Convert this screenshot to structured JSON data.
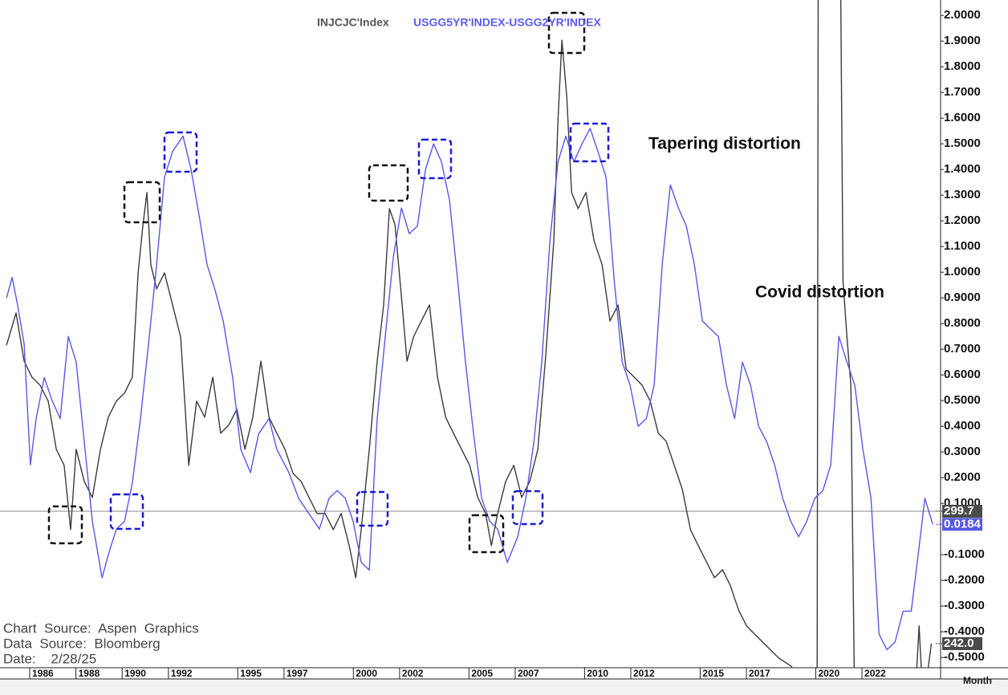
{
  "chart_data": {
    "type": "line",
    "legend": [
      "INJCJC'Index",
      "USGG5YR'INDEX-USGG2YR'INDEX"
    ],
    "annotations": [
      "Tapering distortion",
      "Covid distortion"
    ],
    "notes": [
      "Chart  Source:  Aspen  Graphics",
      "Data  Source:  Bloomberg",
      "Date:    2/28/25"
    ],
    "xlabel": "Month",
    "xlim": [
      1985,
      2025.4
    ],
    "xticks": [
      1986,
      1988,
      1990,
      1992,
      1995,
      1997,
      2000,
      2002,
      2005,
      2007,
      2010,
      2012,
      2015,
      2017,
      2020,
      2022
    ],
    "ylim": [
      -0.54,
      2.06
    ],
    "yticks": [
      {
        "value": 2,
        "label": "2.0000"
      },
      {
        "value": 1.9,
        "label": "1.9000"
      },
      {
        "value": 1.8,
        "label": "1.8000"
      },
      {
        "value": 1.7,
        "label": "1.7000"
      },
      {
        "value": 1.6,
        "label": "1.6000"
      },
      {
        "value": 1.5,
        "label": "1.5000"
      },
      {
        "value": 1.4,
        "label": "1.4000"
      },
      {
        "value": 1.3,
        "label": "1.3000"
      },
      {
        "value": 1.2,
        "label": "1.2000"
      },
      {
        "value": 1.1,
        "label": "1.1000"
      },
      {
        "value": 1,
        "label": "1.0000"
      },
      {
        "value": 0.9,
        "label": "0.9000"
      },
      {
        "value": 0.8,
        "label": "0.8000"
      },
      {
        "value": 0.7,
        "label": "0.7000"
      },
      {
        "value": 0.6,
        "label": "0.6000"
      },
      {
        "value": 0.5,
        "label": "0.5000"
      },
      {
        "value": 0.4,
        "label": "0.4000"
      },
      {
        "value": 0.3,
        "label": "0.3000"
      },
      {
        "value": 0.2,
        "label": "0.2000"
      },
      {
        "value": 0.1,
        "label": "0.1000"
      },
      {
        "value": -0.1,
        "label": "-0.1000"
      },
      {
        "value": -0.2,
        "label": "-0.2000"
      },
      {
        "value": -0.3,
        "label": "-0.3000"
      },
      {
        "value": -0.4,
        "label": "-0.4000"
      },
      {
        "value": -0.5,
        "label": "-0.5000"
      }
    ],
    "y2lim": [
      231.5,
      522.5
    ],
    "series": [
      {
        "name": "INJCJC'Index",
        "color": "#3a3a3a",
        "axis": "y2",
        "x": [
          1985.0,
          1985.41,
          1985.76,
          1986.1,
          1986.45,
          1986.8,
          1987.15,
          1987.49,
          1987.77,
          1988.01,
          1988.36,
          1988.71,
          1989.06,
          1989.4,
          1989.75,
          1990.1,
          1990.44,
          1990.69,
          1990.9,
          1991.07,
          1991.24,
          1991.49,
          1991.83,
          1992.18,
          1992.53,
          1992.88,
          1993.22,
          1993.57,
          1993.92,
          1994.26,
          1994.61,
          1994.96,
          1995.31,
          1995.65,
          1996.0,
          1996.35,
          1996.69,
          1997.04,
          1997.39,
          1997.74,
          1998.08,
          1998.43,
          1998.78,
          1999.13,
          1999.47,
          1999.82,
          2000.1,
          2000.34,
          2000.69,
          2001.03,
          2001.31,
          2001.56,
          2001.8,
          2002.08,
          2002.32,
          2002.6,
          2002.94,
          2003.29,
          2003.64,
          2003.99,
          2004.33,
          2004.68,
          2005.03,
          2005.38,
          2005.72,
          2005.97,
          2006.24,
          2006.59,
          2006.94,
          2007.28,
          2007.63,
          2007.98,
          2008.33,
          2008.67,
          2008.85,
          2009.02,
          2009.23,
          2009.44,
          2009.72,
          2010.06,
          2010.41,
          2010.76,
          2011.1,
          2011.45,
          2011.8,
          2012.15,
          2012.49,
          2012.84,
          2013.19,
          2013.53,
          2013.88,
          2014.23,
          2014.58,
          2014.92,
          2015.27,
          2015.62,
          2015.97,
          2016.31,
          2016.66,
          2017.01,
          2017.35,
          2017.7,
          2018.05,
          2018.4,
          2018.92,
          2019.44,
          2020.06,
          2020.13,
          2021.0,
          2021.18,
          2021.35,
          2021.52,
          2021.69,
          2024.3,
          2024.47,
          2024.65,
          2025.0
        ],
        "values": [
          372.1,
          386.1,
          365.1,
          358.1,
          354.6,
          347.7,
          326.7,
          319.7,
          291.7,
          326.7,
          312.7,
          305.7,
          326.7,
          340.7,
          347.7,
          351.2,
          358.1,
          403.6,
          424.6,
          438.6,
          407.1,
          396.6,
          403.6,
          389.6,
          375.6,
          319.7,
          347.7,
          340.7,
          358.1,
          333.7,
          337.2,
          344.2,
          326.7,
          340.7,
          365.1,
          340.7,
          333.7,
          326.7,
          316.2,
          312.7,
          305.7,
          298.7,
          298.7,
          291.7,
          298.7,
          284.7,
          270.7,
          291.7,
          326.7,
          365.1,
          389.6,
          431.6,
          424.6,
          393.1,
          365.1,
          375.6,
          382.6,
          389.6,
          358.1,
          340.7,
          333.7,
          326.7,
          319.7,
          305.7,
          298.7,
          284.7,
          298.7,
          312.7,
          319.7,
          305.7,
          312.7,
          326.7,
          368.6,
          417.6,
          470.0,
          505.0,
          480.5,
          438.6,
          431.6,
          438.6,
          417.6,
          407.1,
          382.6,
          389.6,
          361.6,
          358.1,
          354.6,
          347.7,
          333.7,
          330.2,
          319.7,
          309.2,
          291.7,
          284.7,
          277.7,
          270.7,
          274.2,
          267.2,
          256.7,
          249.7,
          246.2,
          242.7,
          239.2,
          235.7,
          232.3,
          225.3,
          221.8,
          697.4,
          627.4,
          400.1,
          375.6,
          354.6,
          207.8,
          218.3,
          249.7,
          214.8,
          242.0
        ]
      },
      {
        "name": "USGG5YR'INDEX-USGG2YR'INDEX",
        "color": "#5757e8",
        "x": [
          1985.0,
          1985.24,
          1985.48,
          1985.76,
          1986.03,
          1986.28,
          1986.63,
          1986.97,
          1987.32,
          1987.67,
          1988.01,
          1988.36,
          1988.71,
          1989.13,
          1989.4,
          1989.75,
          1990.1,
          1990.44,
          1990.79,
          1991.14,
          1991.49,
          1991.83,
          1992.18,
          1992.63,
          1992.98,
          1993.33,
          1993.67,
          1994.02,
          1994.37,
          1994.78,
          1995.13,
          1995.55,
          1995.9,
          1996.35,
          1996.69,
          1997.21,
          1997.63,
          1998.08,
          1998.53,
          1998.95,
          1999.3,
          1999.65,
          1999.99,
          2000.34,
          2000.69,
          2001.03,
          2001.38,
          2001.73,
          2002.08,
          2002.42,
          2002.77,
          2003.12,
          2003.47,
          2003.81,
          2004.16,
          2004.51,
          2004.85,
          2005.2,
          2005.55,
          2005.9,
          2006.24,
          2006.66,
          2007.11,
          2007.46,
          2007.81,
          2008.15,
          2008.5,
          2008.85,
          2009.19,
          2009.54,
          2009.89,
          2010.24,
          2010.58,
          2010.93,
          2011.28,
          2011.63,
          2011.97,
          2012.32,
          2012.67,
          2013.01,
          2013.36,
          2013.71,
          2014.06,
          2014.4,
          2014.75,
          2015.1,
          2015.44,
          2015.79,
          2016.14,
          2016.49,
          2016.83,
          2017.18,
          2017.53,
          2017.88,
          2018.22,
          2018.57,
          2018.92,
          2019.26,
          2019.61,
          2019.96,
          2020.31,
          2020.65,
          2021.0,
          2021.35,
          2021.69,
          2022.04,
          2022.39,
          2022.74,
          2023.08,
          2023.43,
          2023.78,
          2024.13,
          2024.47,
          2024.72,
          2024.92,
          2025.06
        ],
        "values": [
          0.9,
          0.98,
          0.87,
          0.72,
          0.25,
          0.43,
          0.59,
          0.5,
          0.43,
          0.75,
          0.65,
          0.34,
          0.03,
          -0.19,
          -0.1,
          0.0,
          0.03,
          0.18,
          0.43,
          0.72,
          1.03,
          1.37,
          1.47,
          1.53,
          1.4,
          1.22,
          1.03,
          0.93,
          0.81,
          0.59,
          0.31,
          0.22,
          0.37,
          0.43,
          0.31,
          0.22,
          0.12,
          0.06,
          0.0,
          0.12,
          0.15,
          0.12,
          0.03,
          -0.13,
          -0.16,
          0.43,
          0.75,
          1.06,
          1.25,
          1.15,
          1.18,
          1.4,
          1.5,
          1.43,
          1.28,
          0.97,
          0.65,
          0.37,
          0.12,
          0.03,
          0.0,
          -0.13,
          -0.03,
          0.12,
          0.34,
          0.65,
          1.12,
          1.43,
          1.53,
          1.43,
          1.5,
          1.56,
          1.47,
          1.37,
          0.97,
          0.65,
          0.56,
          0.4,
          0.43,
          0.56,
          1.03,
          1.34,
          1.25,
          1.18,
          1.03,
          0.81,
          0.78,
          0.75,
          0.56,
          0.43,
          0.65,
          0.56,
          0.4,
          0.34,
          0.25,
          0.12,
          0.03,
          -0.03,
          0.03,
          0.12,
          0.15,
          0.25,
          0.75,
          0.65,
          0.56,
          0.31,
          0.12,
          -0.41,
          -0.47,
          -0.44,
          -0.32,
          -0.32,
          -0.07,
          0.12,
          0.06,
          0.0184
        ]
      }
    ],
    "markers": [
      {
        "value": 299.7,
        "axis": "y2",
        "color": "#4a4a4a",
        "line": true
      },
      {
        "value": 0.0184,
        "color": "#5757e8"
      },
      {
        "value": 242,
        "label": "242.0",
        "axis": "y2",
        "color": "#4a4a4a"
      }
    ]
  }
}
